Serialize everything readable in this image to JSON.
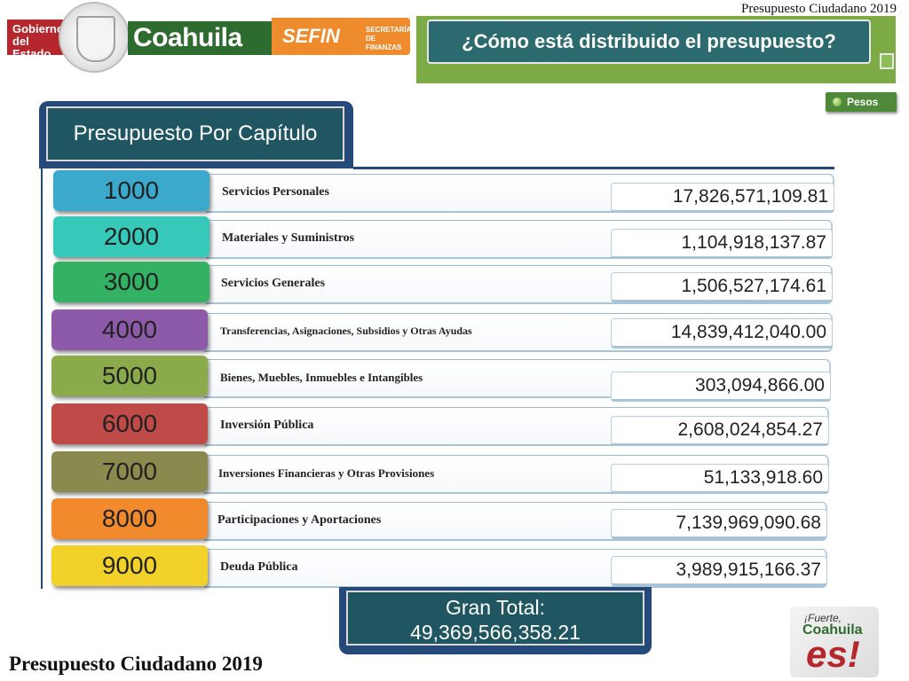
{
  "header": {
    "gobierno_logo_text": "Gobierno del Estado",
    "coahuila_logo_text": "Coahuila",
    "sefin_logo_text": "SEFIN",
    "sefin_sub_text": "SECRETARÍA DE FINANZAS",
    "top_title": "Presupuesto Ciudadano 2019",
    "question": "¿Cómo está distribuido el presupuesto?",
    "pesos_button": "Pesos"
  },
  "panel": {
    "title": "Presupuesto Por Capítulo",
    "rows": [
      {
        "code": "1000",
        "label": "Servicios Personales",
        "amount": "17,826,571,109.81",
        "color": "#3aa9cc"
      },
      {
        "code": "2000",
        "label": "Materiales y Suministros",
        "amount": "1,104,918,137.87",
        "color": "#36c8b8"
      },
      {
        "code": "3000",
        "label": "Servicios Generales",
        "amount": "1,506,527,174.61",
        "color": "#34b264"
      },
      {
        "code": "4000",
        "label": "Transferencias, Asignaciones, Subsidios y Otras Ayudas",
        "amount": "14,839,412,040.00",
        "color": "#8c5aa8"
      },
      {
        "code": "5000",
        "label": "Bienes, Muebles, Inmuebles e Intangibles",
        "amount": "303,094,866.00",
        "color": "#8aaa4c"
      },
      {
        "code": "6000",
        "label": "Inversión Pública",
        "amount": "2,608,024,854.27",
        "color": "#c04a48"
      },
      {
        "code": "7000",
        "label": "Inversiones Financieras y Otras Provisiones",
        "amount": "51,133,918.60",
        "color": "#8a8a4e"
      },
      {
        "code": "8000",
        "label": "Participaciones y Aportaciones",
        "amount": "7,139,969,090.68",
        "color": "#f08a2c"
      },
      {
        "code": "9000",
        "label": "Deuda Pública",
        "amount": "3,989,915,166.37",
        "color": "#f2d22a"
      }
    ],
    "total_label": "Gran Total:",
    "total_value": "49,369,566,358.21"
  },
  "footer": {
    "bottom_title": "Presupuesto Ciudadano 2019",
    "fuerte_line1": "¡Fuerte,",
    "fuerte_line2": "Coahuila",
    "fuerte_line3": "es!"
  }
}
